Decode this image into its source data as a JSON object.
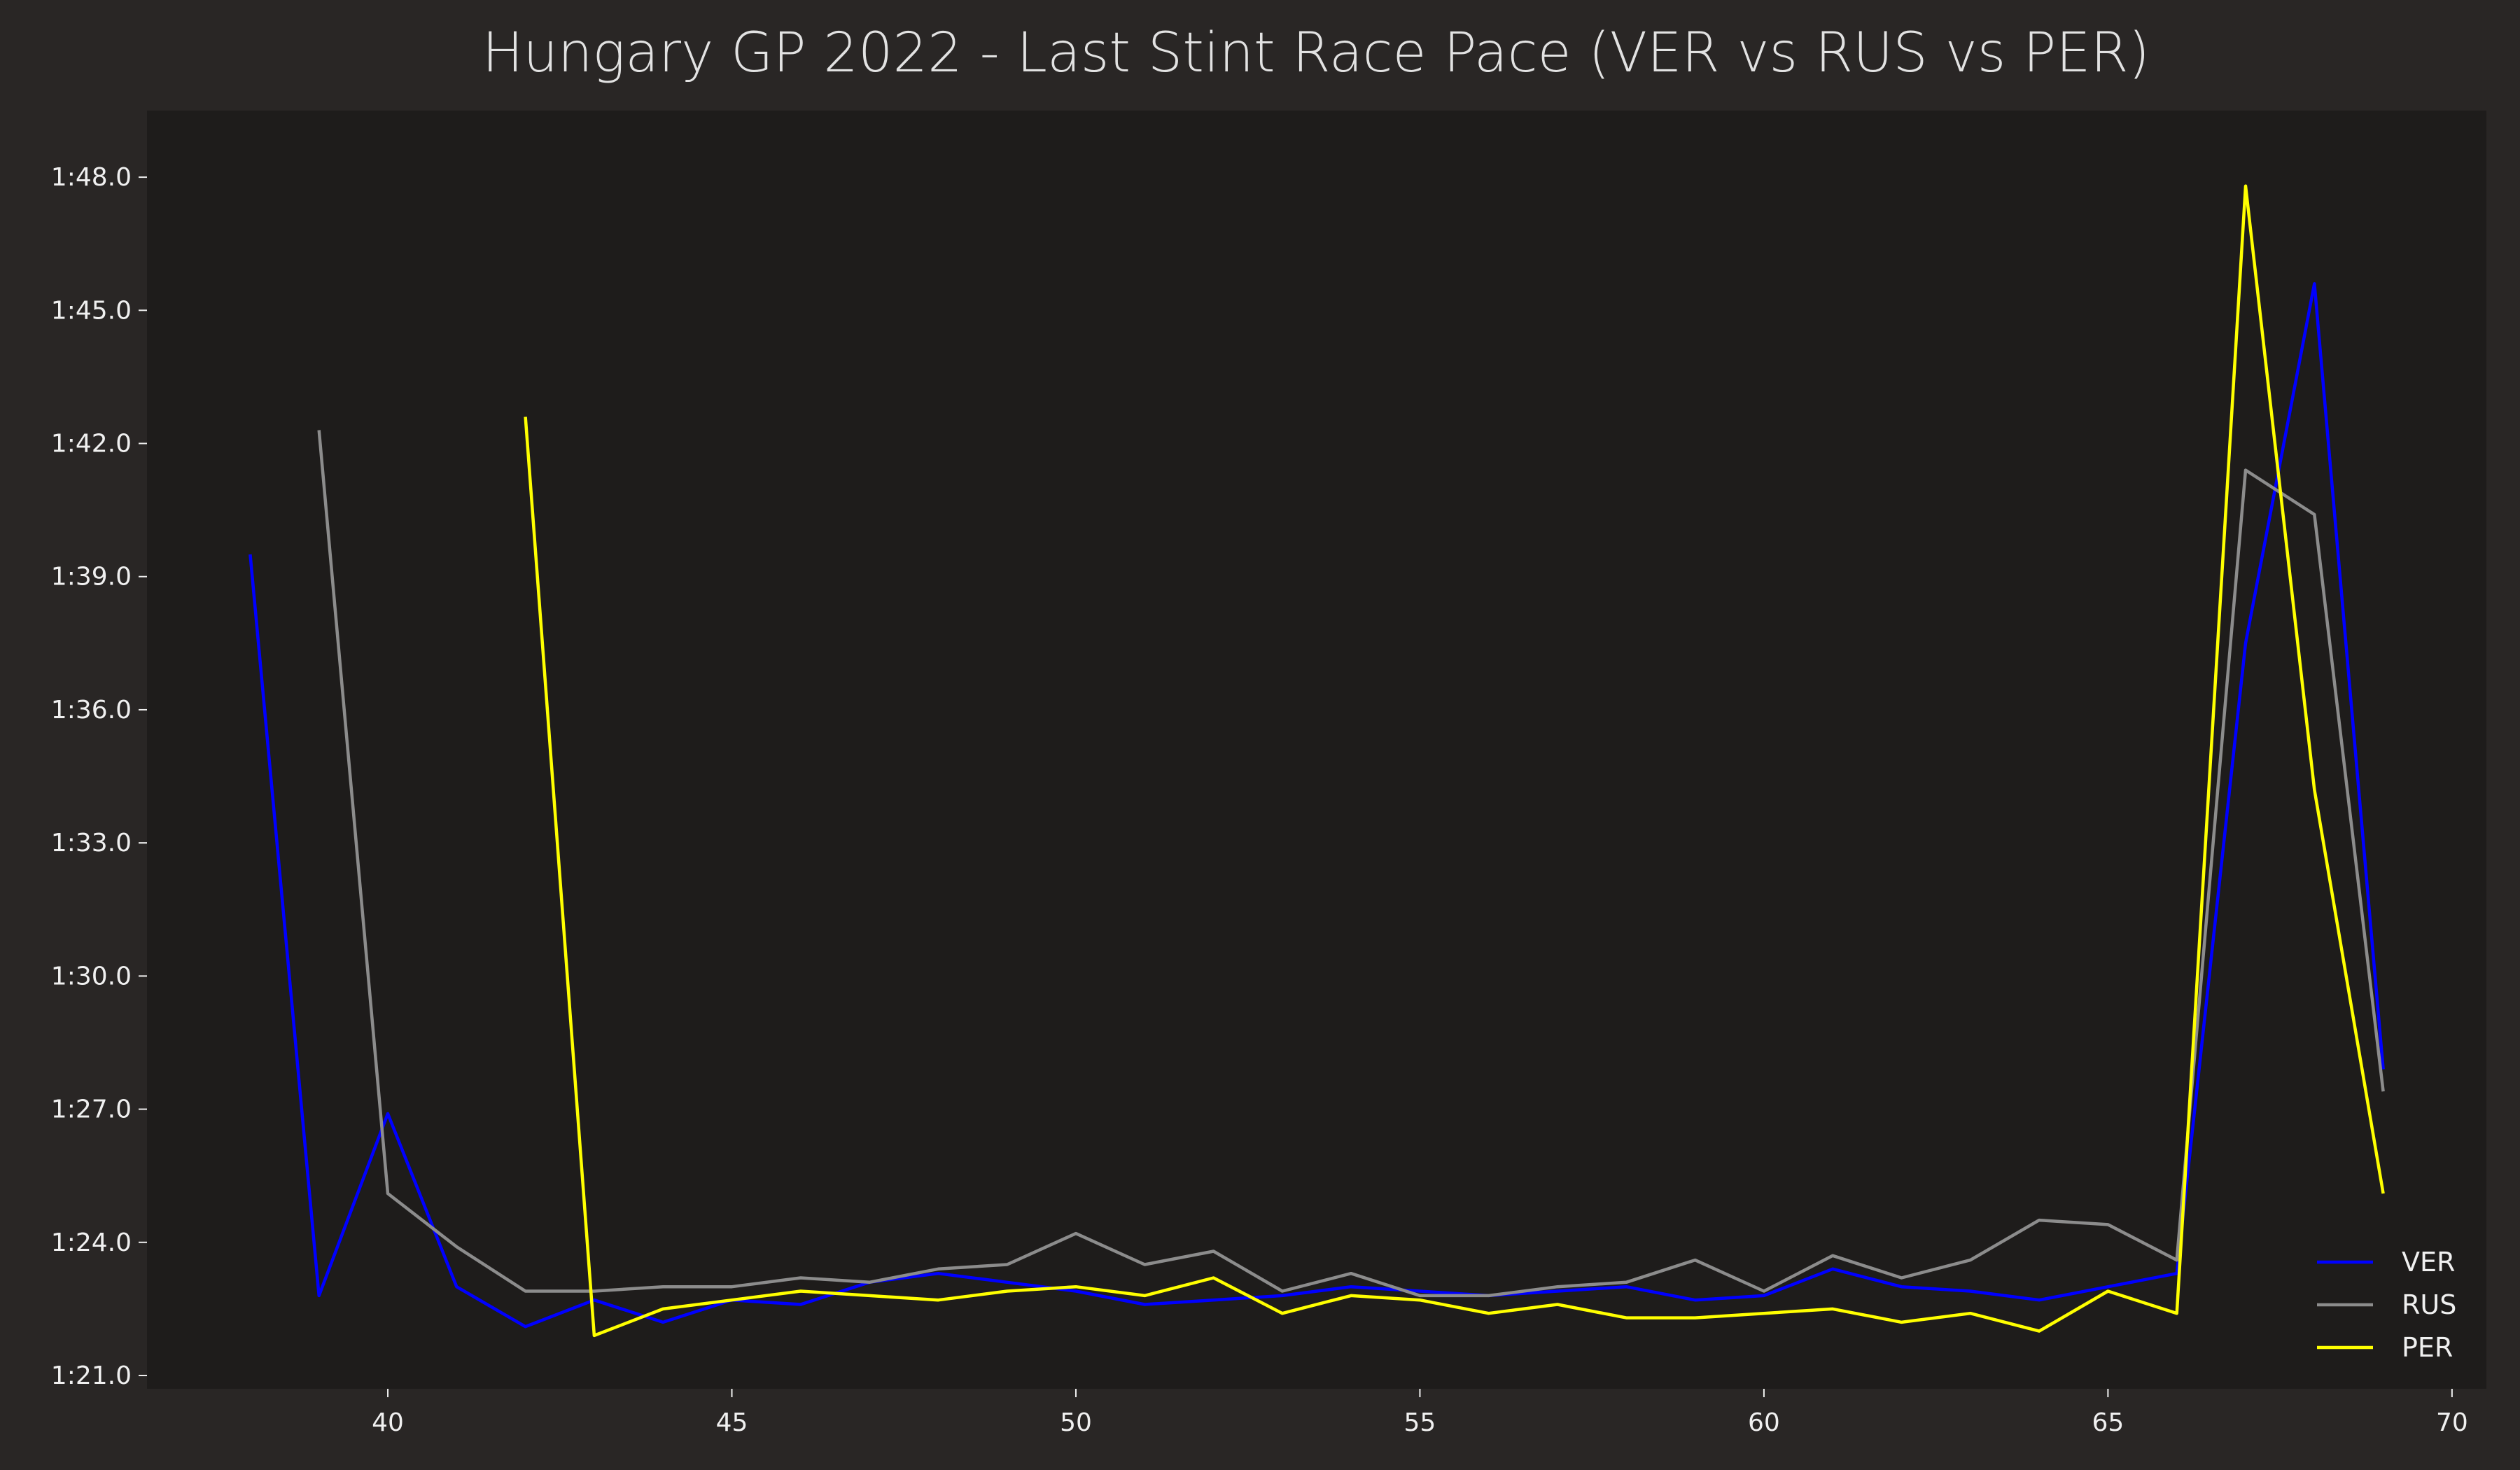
{
  "chart_data": {
    "type": "line",
    "title": "Hungary GP 2022 - Last Stint Race Pace (VER vs RUS vs PER)",
    "xlabel": "",
    "ylabel": "",
    "xlim": [
      36.5,
      70.5
    ],
    "ylim": [
      80.7,
      109.5
    ],
    "x_ticks": [
      40,
      45,
      50,
      55,
      60,
      65,
      70
    ],
    "y_ticks": [
      {
        "value": 81,
        "label": "1:21.0"
      },
      {
        "value": 84,
        "label": "1:24.0"
      },
      {
        "value": 87,
        "label": "1:27.0"
      },
      {
        "value": 90,
        "label": "1:30.0"
      },
      {
        "value": 93,
        "label": "1:33.0"
      },
      {
        "value": 96,
        "label": "1:36.0"
      },
      {
        "value": 99,
        "label": "1:39.0"
      },
      {
        "value": 102,
        "label": "1:42.0"
      },
      {
        "value": 105,
        "label": "1:45.0"
      },
      {
        "value": 108,
        "label": "1:48.0"
      }
    ],
    "grid": false,
    "legend_position": "lower-right",
    "colors": {
      "figure_bg": "#292625",
      "axes_bg": "#1e1c1b"
    },
    "series": [
      {
        "name": "VER",
        "color": "#0000ff",
        "x": [
          38,
          39,
          40,
          41,
          42,
          43,
          44,
          45,
          46,
          47,
          48,
          49,
          50,
          51,
          52,
          53,
          54,
          55,
          56,
          57,
          58,
          59,
          60,
          61,
          62,
          63,
          64,
          65,
          66,
          67,
          68,
          69
        ],
        "values": [
          99.5,
          82.8,
          86.9,
          83.0,
          82.1,
          82.7,
          82.2,
          82.7,
          82.6,
          83.1,
          83.3,
          83.1,
          82.9,
          82.6,
          82.7,
          82.8,
          83.0,
          82.9,
          82.8,
          82.9,
          83.0,
          82.7,
          82.8,
          83.4,
          83.0,
          82.9,
          82.7,
          83.0,
          83.3,
          97.5,
          105.6,
          87.9
        ]
      },
      {
        "name": "RUS",
        "color": "#8c8c8c",
        "x": [
          39,
          40,
          41,
          42,
          43,
          44,
          45,
          46,
          47,
          48,
          49,
          50,
          51,
          52,
          53,
          54,
          55,
          56,
          57,
          58,
          59,
          60,
          61,
          62,
          63,
          64,
          65,
          66,
          67,
          68,
          69
        ],
        "values": [
          102.3,
          85.1,
          83.9,
          82.9,
          82.9,
          83.0,
          83.0,
          83.2,
          83.1,
          83.4,
          83.5,
          84.2,
          83.5,
          83.8,
          82.9,
          83.3,
          82.8,
          82.8,
          83.0,
          83.1,
          83.6,
          82.9,
          83.7,
          83.2,
          83.6,
          84.5,
          84.4,
          83.6,
          101.4,
          100.4,
          87.4
        ]
      },
      {
        "name": "PER",
        "color": "#ffff00",
        "x": [
          42,
          43,
          44,
          45,
          46,
          47,
          48,
          49,
          50,
          51,
          52,
          53,
          54,
          55,
          56,
          57,
          58,
          59,
          60,
          61,
          62,
          63,
          64,
          65,
          66,
          67,
          68,
          69
        ],
        "values": [
          102.6,
          81.9,
          82.5,
          82.7,
          82.9,
          82.8,
          82.7,
          82.9,
          83.0,
          82.8,
          83.2,
          82.4,
          82.8,
          82.7,
          82.4,
          82.6,
          82.3,
          82.3,
          82.4,
          82.5,
          82.2,
          82.4,
          82.0,
          82.9,
          82.4,
          107.8,
          94.2,
          85.1
        ]
      }
    ]
  }
}
